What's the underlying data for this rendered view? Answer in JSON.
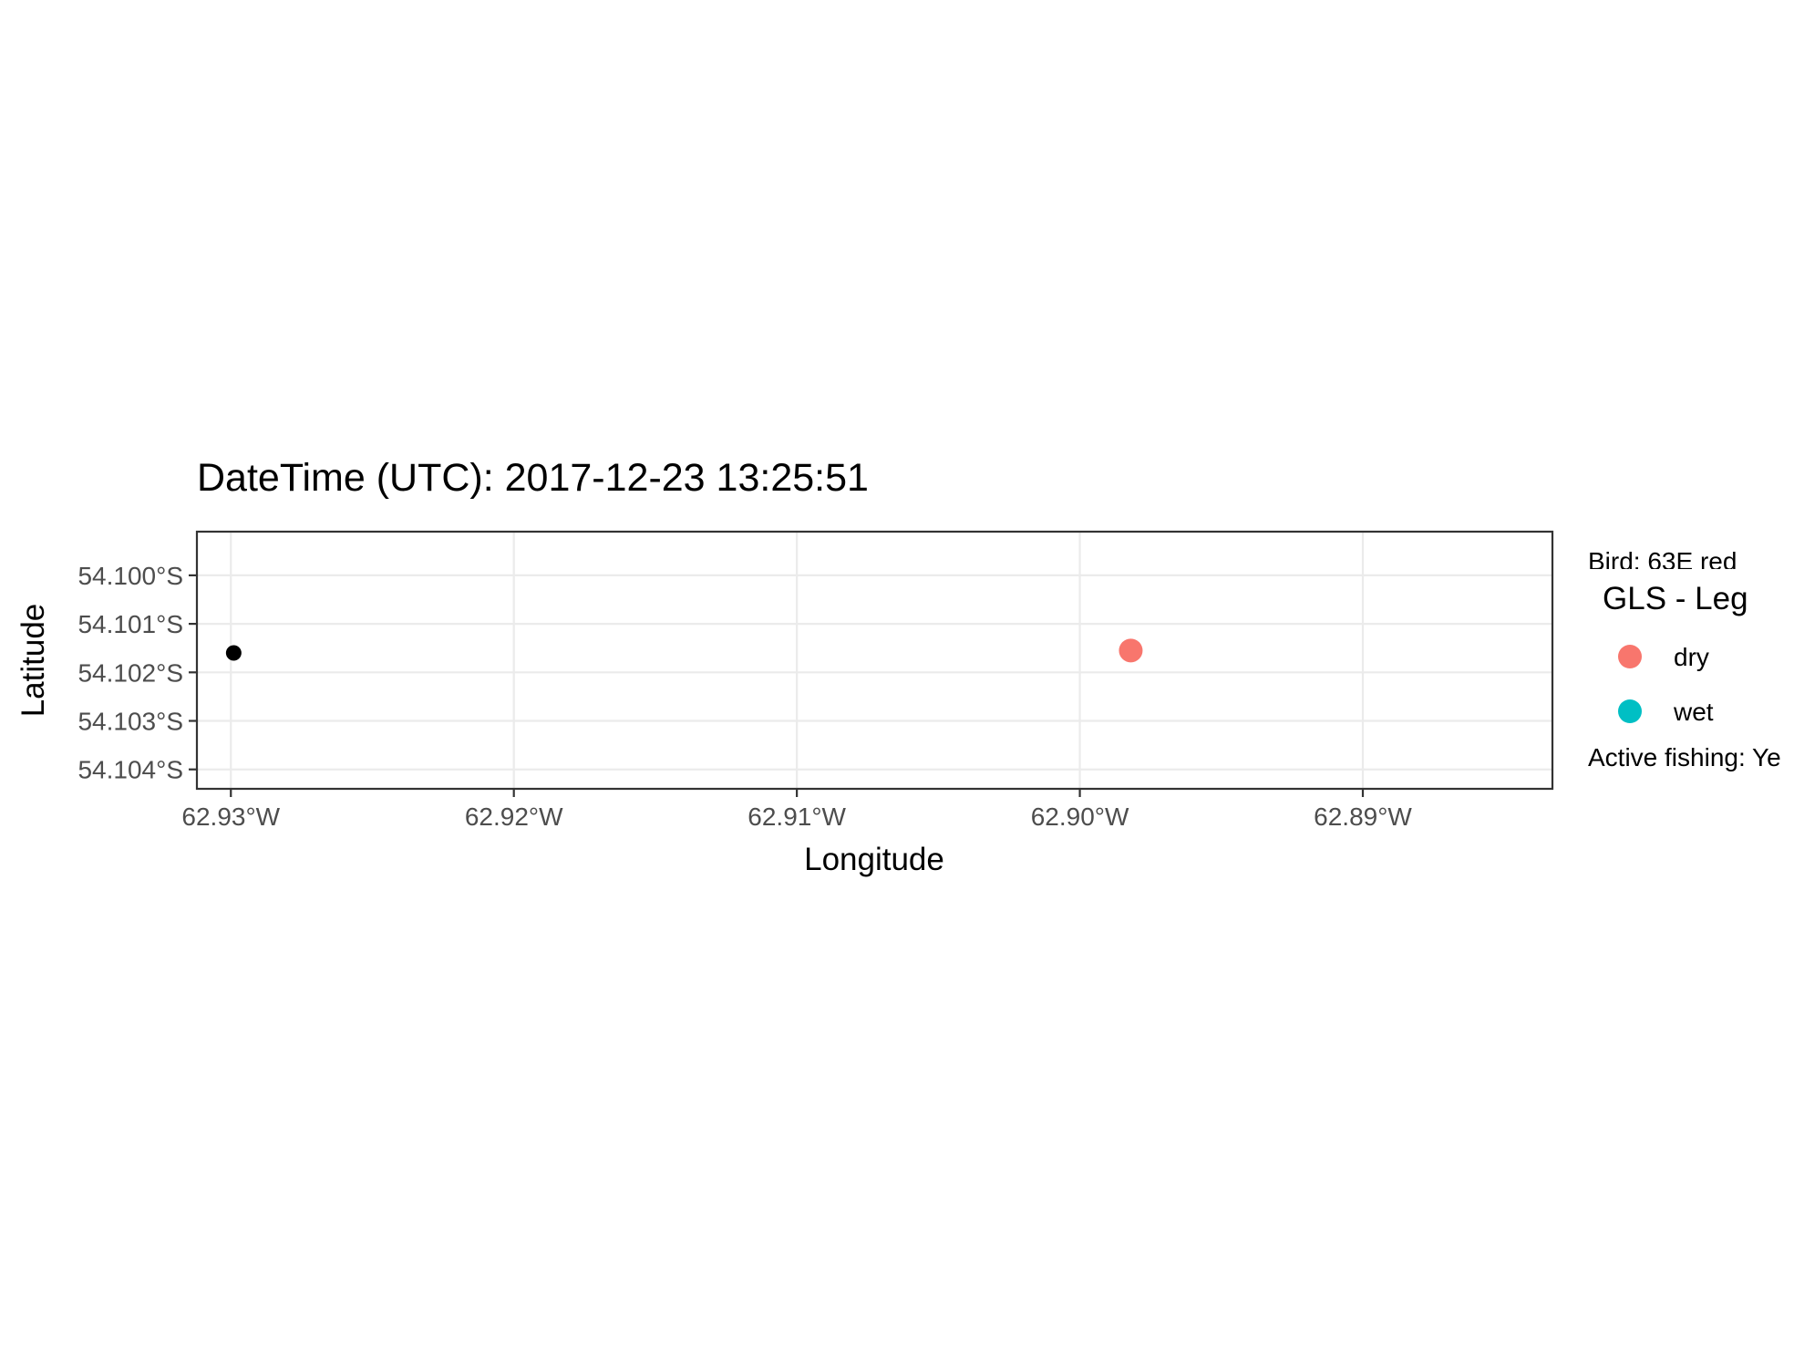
{
  "chart_data": {
    "type": "scatter",
    "title": "DateTime (UTC): 2017-12-23 13:25:51",
    "xlabel": "Longitude",
    "ylabel": "Latitude",
    "xlim": [
      -62.9312,
      -62.8833
    ],
    "ylim": [
      -54.1044,
      -54.0991
    ],
    "x_ticks": [
      -62.93,
      -62.92,
      -62.91,
      -62.9,
      -62.89
    ],
    "x_tick_labels": [
      "62.93°W",
      "62.92°W",
      "62.91°W",
      "62.90°W",
      "62.89°W"
    ],
    "y_ticks": [
      -54.1,
      -54.101,
      -54.102,
      -54.103,
      -54.104
    ],
    "y_tick_labels": [
      "54.100°S",
      "54.101°S",
      "54.102°S",
      "54.103°S",
      "54.104°S"
    ],
    "grid": true,
    "series": [
      {
        "name": "dry",
        "color": "#F8766D",
        "points": [
          {
            "x": -62.8982,
            "y": -54.10155
          }
        ]
      },
      {
        "name": "wet",
        "color": "#00BFC4",
        "points": []
      }
    ],
    "unlabeled_points": [
      {
        "x": -62.9299,
        "y": -54.1016,
        "color": "#000000"
      }
    ],
    "legend": {
      "title": "GLS - Leg",
      "position": "right",
      "items": [
        "dry",
        "wet"
      ]
    },
    "clipped_text": [
      "Bird: 63E red",
      "Active fishing: Ye"
    ]
  }
}
